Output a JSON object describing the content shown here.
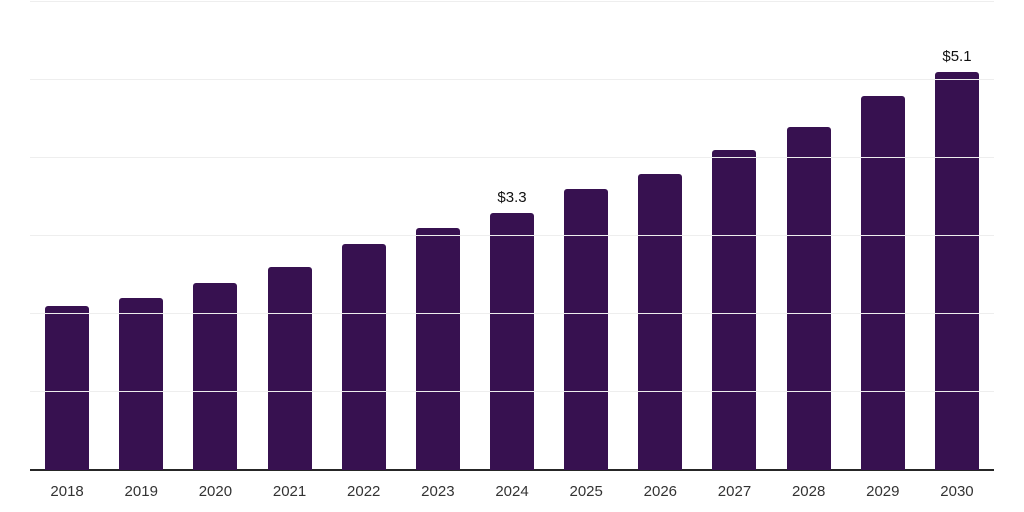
{
  "chart_data": {
    "type": "bar",
    "title": "",
    "xlabel": "",
    "ylabel": "",
    "categories": [
      "2018",
      "2019",
      "2020",
      "2021",
      "2022",
      "2023",
      "2024",
      "2025",
      "2026",
      "2027",
      "2028",
      "2029",
      "2030"
    ],
    "values": [
      2.1,
      2.2,
      2.4,
      2.6,
      2.9,
      3.1,
      3.3,
      3.6,
      3.8,
      4.1,
      4.4,
      4.8,
      5.1
    ],
    "point_labels": [
      "",
      "",
      "",
      "",
      "",
      "",
      "$3.3",
      "",
      "",
      "",
      "",
      "",
      "$5.1"
    ],
    "ylim": [
      0,
      6
    ],
    "gridline_values": [
      1,
      2,
      3,
      4,
      5,
      6
    ],
    "grid": "horizontal",
    "legend_position": "none"
  },
  "colors": {
    "bar": "#371150",
    "gridline": "#eeeeee",
    "axis_line": "#262626",
    "value_label": "#111111",
    "tick_label": "#333333",
    "background": "#ffffff"
  }
}
